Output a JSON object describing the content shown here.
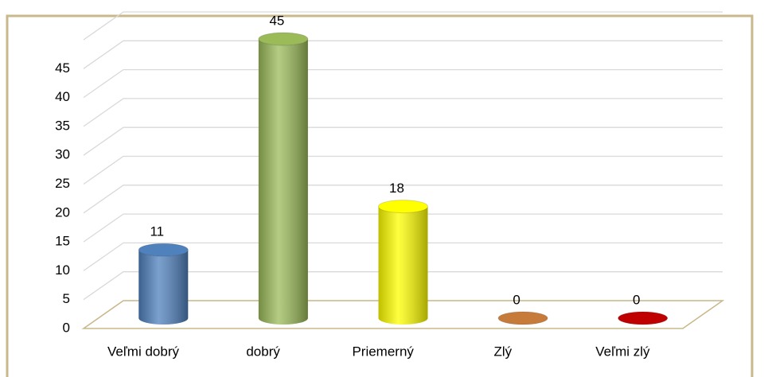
{
  "chart_data": {
    "type": "bar3d",
    "categories": [
      "Veľmi dobrý",
      "dobrý",
      "Priemerný",
      "Zlý",
      "Veľmi zlý"
    ],
    "values": [
      11,
      45,
      18,
      0,
      0
    ],
    "colors": [
      "#4f81bd",
      "#9bbb59",
      "#ffff00",
      "#c77b3a",
      "#c00000"
    ],
    "ylim": [
      0,
      50
    ],
    "yticks": [
      0,
      5,
      10,
      15,
      20,
      25,
      30,
      35,
      40,
      45
    ],
    "grid": true
  }
}
